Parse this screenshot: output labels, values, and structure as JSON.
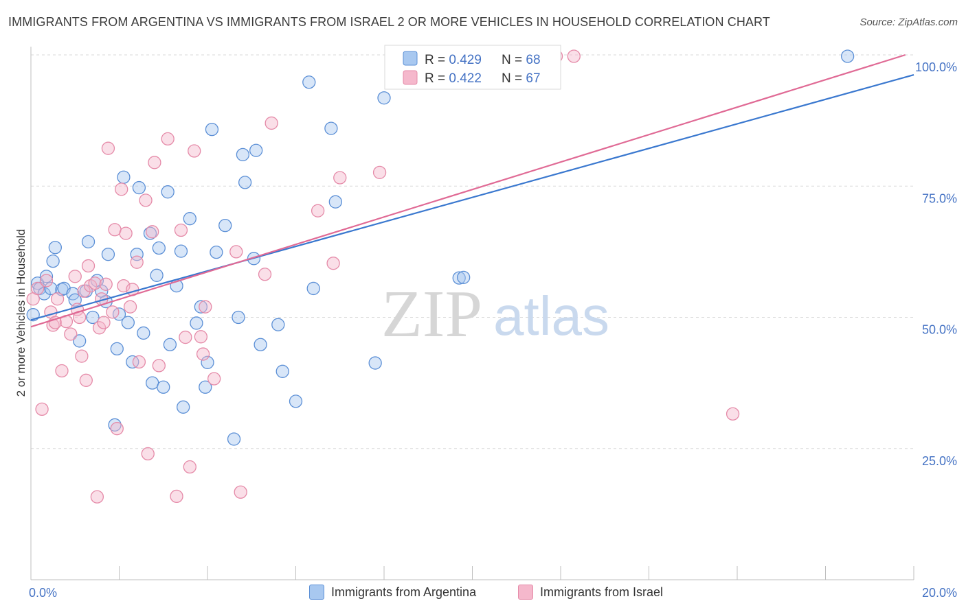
{
  "title": "IMMIGRANTS FROM ARGENTINA VS IMMIGRANTS FROM ISRAEL 2 OR MORE VEHICLES IN HOUSEHOLD CORRELATION CHART",
  "source": "Source: ZipAtlas.com",
  "watermark": {
    "zip": "ZIP",
    "atlas": "atlas"
  },
  "colors": {
    "blue_fill": "#a8c8f0",
    "blue_stroke": "#5b8fd6",
    "blue_line": "#3a78cf",
    "pink_fill": "#f5b8cc",
    "pink_stroke": "#e58aa8",
    "pink_line": "#e06a95",
    "tick_text": "#4472c4",
    "grid": "#d9d9d9"
  },
  "legend": {
    "rows": [
      {
        "r_label": "R = ",
        "r_value": "0.429",
        "n_label": "N = ",
        "n_value": "68"
      },
      {
        "r_label": "R = ",
        "r_value": "0.422",
        "n_label": "N = ",
        "n_value": "67"
      }
    ]
  },
  "bottom_legend": [
    {
      "label": "Immigrants from Argentina"
    },
    {
      "label": "Immigrants from Israel"
    }
  ],
  "chart_data": {
    "type": "scatter",
    "title": "IMMIGRANTS FROM ARGENTINA VS IMMIGRANTS FROM ISRAEL 2 OR MORE VEHICLES IN HOUSEHOLD CORRELATION CHART",
    "xlabel": "",
    "ylabel": "2 or more Vehicles in Household",
    "xlim": [
      0,
      20
    ],
    "ylim": [
      0,
      100
    ],
    "x_tick_labels": [
      "0.0%",
      "20.0%"
    ],
    "y_ticks": [
      25,
      50,
      75,
      100
    ],
    "y_tick_labels": [
      "25.0%",
      "50.0%",
      "75.0%",
      "100.0%"
    ],
    "grid": true,
    "legend_position": "top-center",
    "series": [
      {
        "name": "Immigrants from Argentina",
        "r": 0.429,
        "n": 68,
        "trendline": {
          "x": [
            0,
            20
          ],
          "y": [
            49.5,
            96.2
          ]
        },
        "points": [
          [
            0.05,
            50.5
          ],
          [
            0.15,
            56.5
          ],
          [
            0.2,
            55.5
          ],
          [
            0.3,
            54.5
          ],
          [
            0.35,
            57.8
          ],
          [
            0.45,
            55.5
          ],
          [
            0.5,
            60.7
          ],
          [
            0.55,
            63.3
          ],
          [
            0.7,
            55.3
          ],
          [
            0.75,
            55.5
          ],
          [
            0.95,
            54.5
          ],
          [
            1.0,
            53.3
          ],
          [
            1.1,
            45.5
          ],
          [
            1.25,
            55.0
          ],
          [
            1.3,
            64.4
          ],
          [
            1.4,
            50.0
          ],
          [
            1.5,
            57.0
          ],
          [
            1.6,
            55.0
          ],
          [
            1.7,
            53.0
          ],
          [
            1.75,
            62.0
          ],
          [
            1.9,
            29.5
          ],
          [
            1.95,
            44.0
          ],
          [
            2.0,
            50.6
          ],
          [
            2.1,
            76.7
          ],
          [
            2.2,
            49.0
          ],
          [
            2.3,
            41.5
          ],
          [
            2.4,
            62.0
          ],
          [
            2.45,
            74.7
          ],
          [
            2.55,
            47.0
          ],
          [
            2.7,
            66.0
          ],
          [
            2.75,
            37.5
          ],
          [
            2.85,
            58.0
          ],
          [
            2.9,
            63.2
          ],
          [
            3.0,
            36.7
          ],
          [
            3.1,
            73.9
          ],
          [
            3.15,
            44.8
          ],
          [
            3.3,
            56.0
          ],
          [
            3.4,
            62.6
          ],
          [
            3.45,
            32.9
          ],
          [
            3.6,
            68.8
          ],
          [
            3.75,
            48.9
          ],
          [
            3.85,
            52.0
          ],
          [
            3.95,
            36.7
          ],
          [
            4.0,
            41.4
          ],
          [
            4.1,
            85.8
          ],
          [
            4.2,
            62.4
          ],
          [
            4.4,
            67.5
          ],
          [
            4.6,
            26.8
          ],
          [
            4.7,
            50.0
          ],
          [
            4.8,
            81.0
          ],
          [
            4.85,
            75.7
          ],
          [
            5.05,
            61.2
          ],
          [
            5.1,
            81.8
          ],
          [
            5.2,
            44.8
          ],
          [
            5.6,
            48.6
          ],
          [
            5.7,
            39.7
          ],
          [
            6.0,
            34.0
          ],
          [
            6.3,
            94.8
          ],
          [
            6.4,
            55.5
          ],
          [
            6.8,
            86.0
          ],
          [
            6.9,
            72.0
          ],
          [
            7.8,
            41.3
          ],
          [
            8.0,
            91.8
          ],
          [
            9.7,
            57.5
          ],
          [
            9.8,
            57.6
          ],
          [
            18.5,
            100.0
          ],
          [
            8.7,
            100.0
          ],
          [
            9.2,
            100.0
          ]
        ]
      },
      {
        "name": "Immigrants from Israel",
        "r": 0.422,
        "n": 67,
        "trendline": {
          "x": [
            0,
            20
          ],
          "y": [
            48.2,
            100.5
          ]
        },
        "points": [
          [
            0.05,
            53.5
          ],
          [
            0.15,
            55.5
          ],
          [
            0.25,
            32.5
          ],
          [
            0.35,
            57.0
          ],
          [
            0.45,
            51.0
          ],
          [
            0.5,
            48.5
          ],
          [
            0.55,
            49.0
          ],
          [
            0.6,
            53.5
          ],
          [
            0.7,
            39.8
          ],
          [
            0.8,
            49.2
          ],
          [
            0.9,
            46.8
          ],
          [
            1.0,
            57.8
          ],
          [
            1.05,
            51.5
          ],
          [
            1.1,
            50.0
          ],
          [
            1.15,
            42.6
          ],
          [
            1.2,
            55.0
          ],
          [
            1.25,
            38.0
          ],
          [
            1.3,
            59.8
          ],
          [
            1.35,
            56.0
          ],
          [
            1.45,
            56.5
          ],
          [
            1.5,
            15.8
          ],
          [
            1.55,
            48.0
          ],
          [
            1.6,
            53.5
          ],
          [
            1.65,
            49.0
          ],
          [
            1.7,
            56.3
          ],
          [
            1.75,
            82.2
          ],
          [
            1.85,
            51.0
          ],
          [
            1.9,
            66.7
          ],
          [
            1.95,
            28.8
          ],
          [
            2.05,
            74.4
          ],
          [
            2.1,
            56.0
          ],
          [
            2.15,
            66.0
          ],
          [
            2.25,
            52.0
          ],
          [
            2.3,
            55.3
          ],
          [
            2.4,
            60.5
          ],
          [
            2.45,
            41.5
          ],
          [
            2.6,
            72.3
          ],
          [
            2.65,
            24.0
          ],
          [
            2.75,
            66.3
          ],
          [
            2.8,
            79.5
          ],
          [
            2.9,
            40.8
          ],
          [
            3.1,
            84.0
          ],
          [
            3.3,
            15.9
          ],
          [
            3.4,
            66.6
          ],
          [
            3.5,
            46.2
          ],
          [
            3.6,
            21.5
          ],
          [
            3.7,
            81.7
          ],
          [
            3.85,
            46.3
          ],
          [
            3.9,
            43.0
          ],
          [
            3.95,
            52.0
          ],
          [
            4.15,
            38.3
          ],
          [
            4.65,
            62.5
          ],
          [
            4.75,
            16.7
          ],
          [
            5.3,
            58.2
          ],
          [
            5.45,
            87.0
          ],
          [
            6.5,
            70.3
          ],
          [
            6.85,
            60.3
          ],
          [
            7.0,
            76.6
          ],
          [
            7.9,
            77.6
          ],
          [
            9.2,
            100.0
          ],
          [
            9.5,
            100.0
          ],
          [
            10.1,
            100.0
          ],
          [
            10.2,
            100.0
          ],
          [
            10.6,
            100.0
          ],
          [
            11.9,
            100.0
          ],
          [
            12.3,
            100.0
          ],
          [
            15.9,
            31.6
          ]
        ]
      }
    ]
  }
}
